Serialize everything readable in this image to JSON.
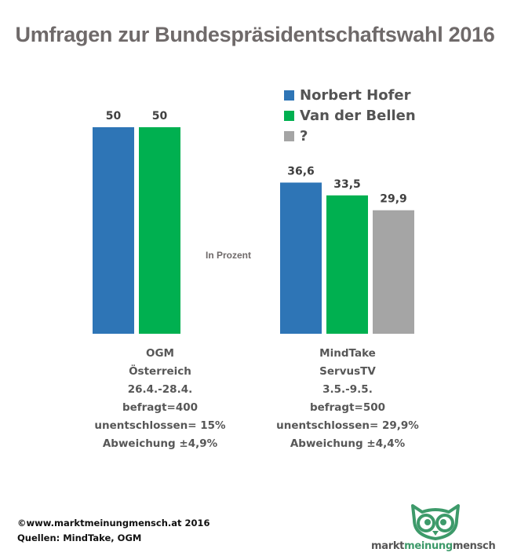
{
  "title": "Umfragen zur Bundespräsidentschaftswahl 2016",
  "unit_label": "In Prozent",
  "legend": [
    {
      "label": "Norbert Hofer",
      "color": "#2e75b6"
    },
    {
      "label": "Van der Bellen",
      "color": "#00b050"
    },
    {
      "label": "?",
      "color": "#a5a5a5"
    }
  ],
  "chart_data": {
    "type": "bar",
    "title": "Umfragen zur Bundespräsidentschaftswahl 2016",
    "ylabel": "In Prozent",
    "xlabel": "",
    "ylim": [
      0,
      50
    ],
    "grid": false,
    "legend_position": "top-right",
    "groups": [
      {
        "name": "OGM",
        "label_lines": [
          "OGM",
          "Österreich",
          "26.4.-28.4.",
          "befragt=400",
          "unentschlossen= 15%",
          "Abweichung ±4,9%"
        ],
        "bars": [
          {
            "series": "Norbert Hofer",
            "value": 50,
            "label": "50",
            "color": "#2e75b6"
          },
          {
            "series": "Van der Bellen",
            "value": 50,
            "label": "50",
            "color": "#00b050"
          }
        ]
      },
      {
        "name": "MindTake",
        "label_lines": [
          "MindTake",
          "ServusTV",
          "3.5.-9.5.",
          "befragt=500",
          "unentschlossen= 29,9%",
          "Abweichung ±4,4%"
        ],
        "bars": [
          {
            "series": "Norbert Hofer",
            "value": 36.6,
            "label": "36,6",
            "color": "#2e75b6"
          },
          {
            "series": "Van der Bellen",
            "value": 33.5,
            "label": "33,5",
            "color": "#00b050"
          },
          {
            "series": "?",
            "value": 29.9,
            "label": "29,9",
            "color": "#a5a5a5"
          }
        ]
      }
    ]
  },
  "footer": {
    "copyright": "©www.marktmeinungmensch.at 2016",
    "sources": "Quellen: MindTake, OGM"
  },
  "logo": {
    "part1": "markt",
    "part2": "meinung",
    "part3": "mensch",
    "color_dark": "#555555",
    "color_green": "#3d9a6a"
  }
}
